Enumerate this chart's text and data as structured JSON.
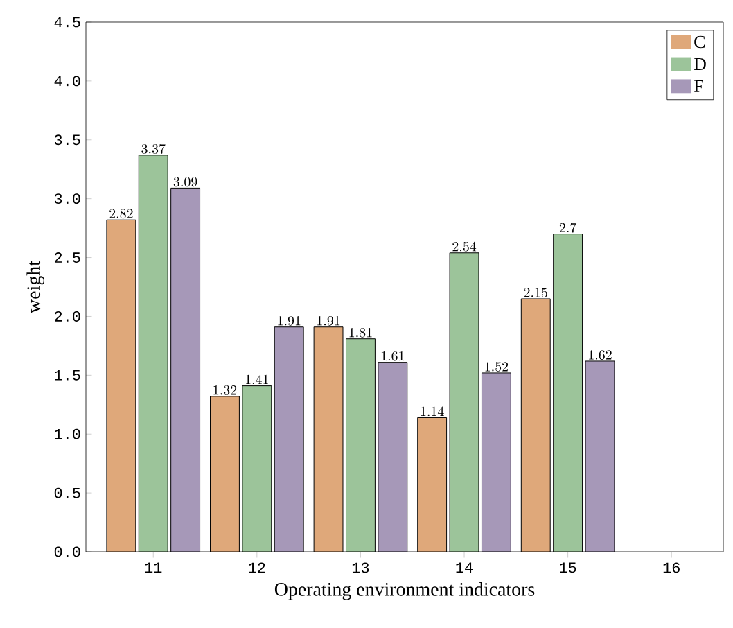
{
  "chart_data": {
    "type": "bar",
    "xlabel": "Operating environment indicators",
    "ylabel": "weight",
    "x": [
      11,
      12,
      13,
      14,
      15
    ],
    "xlim": [
      10.35,
      16.5
    ],
    "xticks": [
      11,
      12,
      13,
      14,
      15,
      16
    ],
    "ylim": [
      0,
      4.5
    ],
    "yticks": [
      {
        "value": 0,
        "label": "0.0"
      },
      {
        "value": 0.5,
        "label": "0.5"
      },
      {
        "value": 1,
        "label": "1.0"
      },
      {
        "value": 1.5,
        "label": "1.5"
      },
      {
        "value": 2,
        "label": "2.0"
      },
      {
        "value": 2.5,
        "label": "2.5"
      },
      {
        "value": 3,
        "label": "3.0"
      },
      {
        "value": 3.5,
        "label": "3.5"
      },
      {
        "value": 4,
        "label": "4.0"
      },
      {
        "value": 4.5,
        "label": "4.5"
      }
    ],
    "series": [
      {
        "name": "C",
        "color": "#dfa87a",
        "values": [
          2.82,
          1.32,
          1.91,
          1.14,
          2.15
        ]
      },
      {
        "name": "D",
        "color": "#9cc49a",
        "values": [
          3.37,
          1.41,
          1.81,
          2.54,
          2.7
        ]
      },
      {
        "name": "F",
        "color": "#a698b8",
        "values": [
          3.09,
          1.91,
          1.61,
          1.52,
          1.62
        ]
      }
    ],
    "data_labels": true,
    "legend": "top right",
    "grid": false
  }
}
